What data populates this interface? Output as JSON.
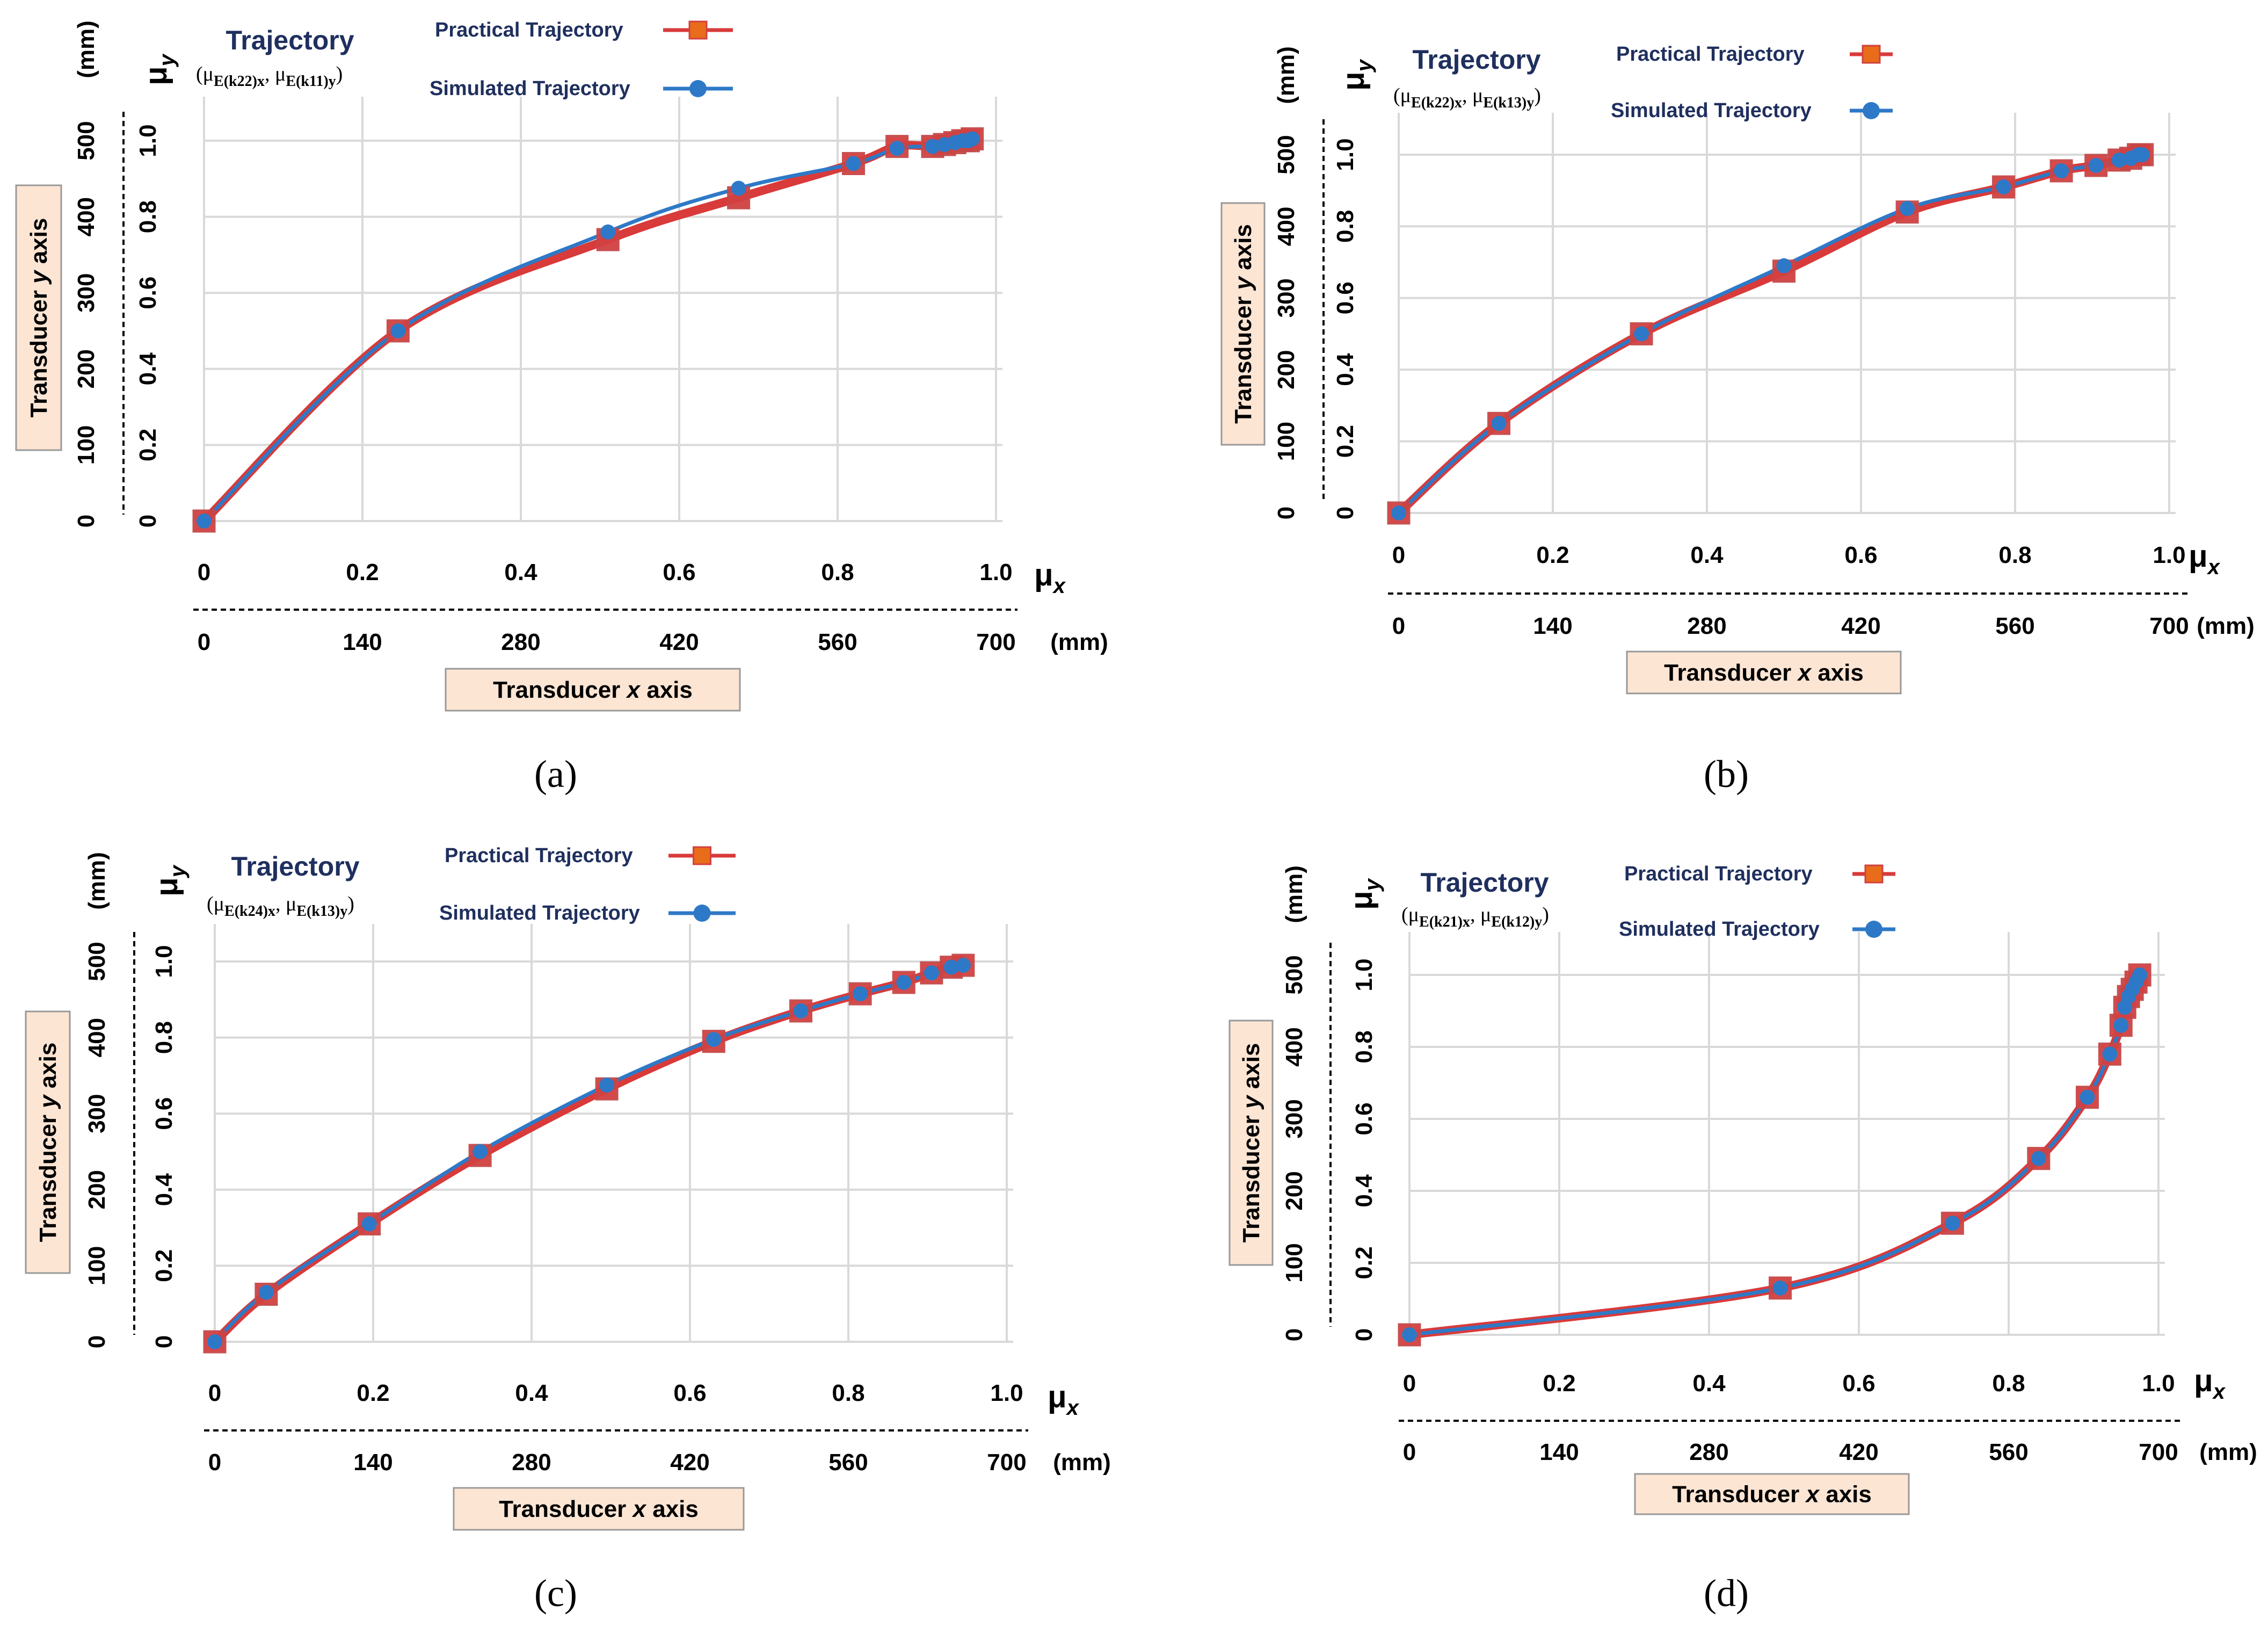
{
  "colors": {
    "practical": "#d93a3a",
    "practical_marker": "#e86c1a",
    "practical_marker_stroke": "#d24141",
    "simulated": "#2e79c7",
    "box_fill": "#fde5d4",
    "title": "#1f2f5e"
  },
  "common": {
    "legend_practical": "Practical Trajectory",
    "legend_simulated": "Simulated Trajectory",
    "title": "Trajectory",
    "y_symbol": "μ",
    "y_symbol_sub": "y",
    "x_symbol": "μ",
    "x_symbol_sub": "x",
    "mm": "(mm)",
    "x_box_prefix": "Transducer ",
    "x_box_italic": "x",
    "x_box_suffix": " axis",
    "y_box_prefix": "Transducer ",
    "y_box_italic": "y",
    "y_box_suffix": " axis",
    "mu_ticks": [
      "0",
      "0.2",
      "0.4",
      "0.6",
      "0.8",
      "1.0"
    ],
    "x_mm_ticks": [
      "0",
      "140",
      "280",
      "420",
      "560",
      "700"
    ],
    "y_mm_ticks": [
      "0",
      "100",
      "200",
      "300",
      "400",
      "500"
    ]
  },
  "chart_data": [
    {
      "id": "a",
      "type": "line",
      "caption": "(a)",
      "title": "Trajectory",
      "subtitle": "(μE(k22)x, μE(k11)y)",
      "sub_x": "E(k22)x",
      "sub_y": "E(k11)y",
      "xlabel": "Transducer x axis",
      "ylabel": "Transducer y axis",
      "xlim": [
        0,
        1.0
      ],
      "ylim": [
        0,
        1.0
      ],
      "x_mm_range": [
        0,
        700
      ],
      "y_mm_range": [
        0,
        500
      ],
      "grid": true,
      "legend": "top",
      "series": [
        {
          "name": "Practical Trajectory",
          "x": [
            0,
            0.245,
            0.51,
            0.675,
            0.82,
            0.875,
            0.92,
            0.935,
            0.948,
            0.958,
            0.965,
            0.97
          ],
          "y": [
            0,
            0.5,
            0.74,
            0.85,
            0.94,
            0.985,
            0.985,
            0.99,
            0.995,
            1.0,
            1.0,
            1.005
          ]
        },
        {
          "name": "Simulated Trajectory",
          "x": [
            0,
            0.245,
            0.51,
            0.675,
            0.82,
            0.875,
            0.92,
            0.935,
            0.948,
            0.958,
            0.965,
            0.97
          ],
          "y": [
            0,
            0.5,
            0.76,
            0.875,
            0.94,
            0.98,
            0.985,
            0.99,
            0.995,
            1.0,
            1.0,
            1.005
          ]
        }
      ]
    },
    {
      "id": "b",
      "type": "line",
      "caption": "(b)",
      "title": "Trajectory",
      "subtitle": "(μE(k22)x, μE(k13)y)",
      "sub_x": "E(k22)x",
      "sub_y": "E(k13)y",
      "xlabel": "Transducer x axis",
      "ylabel": "Transducer y axis",
      "xlim": [
        0,
        1.0
      ],
      "ylim": [
        0,
        1.0
      ],
      "x_mm_range": [
        0,
        700
      ],
      "y_mm_range": [
        0,
        500
      ],
      "grid": true,
      "legend": "top",
      "series": [
        {
          "name": "Practical Trajectory",
          "x": [
            0,
            0.13,
            0.315,
            0.5,
            0.66,
            0.785,
            0.86,
            0.905,
            0.935,
            0.95,
            0.96,
            0.965
          ],
          "y": [
            0,
            0.25,
            0.5,
            0.675,
            0.84,
            0.91,
            0.955,
            0.97,
            0.985,
            0.99,
            1.0,
            1.0
          ]
        },
        {
          "name": "Simulated Trajectory",
          "x": [
            0,
            0.13,
            0.315,
            0.5,
            0.66,
            0.785,
            0.86,
            0.905,
            0.935,
            0.95,
            0.96,
            0.965
          ],
          "y": [
            0,
            0.25,
            0.5,
            0.69,
            0.85,
            0.91,
            0.955,
            0.97,
            0.985,
            0.99,
            1.0,
            1.0
          ]
        }
      ]
    },
    {
      "id": "c",
      "type": "line",
      "caption": "(c)",
      "title": "Trajectory",
      "subtitle": "(μE(k24)x, μE(k13)y)",
      "sub_x": "E(k24)x",
      "sub_y": "E(k13)y",
      "xlabel": "Transducer x axis",
      "ylabel": "Transducer y axis",
      "xlim": [
        0,
        1.0
      ],
      "ylim": [
        0,
        1.0
      ],
      "x_mm_range": [
        0,
        700
      ],
      "y_mm_range": [
        0,
        500
      ],
      "grid": true,
      "legend": "top",
      "series": [
        {
          "name": "Practical Trajectory",
          "x": [
            0,
            0.065,
            0.195,
            0.335,
            0.495,
            0.63,
            0.74,
            0.815,
            0.87,
            0.905,
            0.93,
            0.945
          ],
          "y": [
            0,
            0.125,
            0.31,
            0.49,
            0.665,
            0.79,
            0.87,
            0.915,
            0.945,
            0.97,
            0.985,
            0.99
          ]
        },
        {
          "name": "Simulated Trajectory",
          "x": [
            0,
            0.065,
            0.195,
            0.335,
            0.495,
            0.63,
            0.74,
            0.815,
            0.87,
            0.905,
            0.93,
            0.945
          ],
          "y": [
            0,
            0.13,
            0.31,
            0.5,
            0.675,
            0.795,
            0.87,
            0.915,
            0.945,
            0.97,
            0.985,
            0.99
          ]
        }
      ]
    },
    {
      "id": "d",
      "type": "line",
      "caption": "(d)",
      "title": "Trajectory",
      "subtitle": "(μE(k21)x, μE(k12)y)",
      "sub_x": "E(k21)x",
      "sub_y": "E(k12)y",
      "xlabel": "Transducer x axis",
      "ylabel": "Transducer y axis",
      "xlim": [
        0,
        1.0
      ],
      "ylim": [
        0,
        1.0
      ],
      "x_mm_range": [
        0,
        700
      ],
      "y_mm_range": [
        0,
        500
      ],
      "grid": true,
      "legend": "top",
      "series": [
        {
          "name": "Practical Trajectory",
          "x": [
            0,
            0.495,
            0.725,
            0.84,
            0.905,
            0.935,
            0.95,
            0.955,
            0.96,
            0.965,
            0.97,
            0.975
          ],
          "y": [
            0,
            0.13,
            0.31,
            0.49,
            0.66,
            0.78,
            0.86,
            0.91,
            0.94,
            0.96,
            0.98,
            1.0
          ]
        },
        {
          "name": "Simulated Trajectory",
          "x": [
            0,
            0.495,
            0.725,
            0.84,
            0.905,
            0.935,
            0.95,
            0.955,
            0.96,
            0.965,
            0.97,
            0.975
          ],
          "y": [
            0,
            0.13,
            0.31,
            0.49,
            0.66,
            0.78,
            0.86,
            0.91,
            0.94,
            0.96,
            0.98,
            1.0
          ]
        }
      ]
    }
  ]
}
